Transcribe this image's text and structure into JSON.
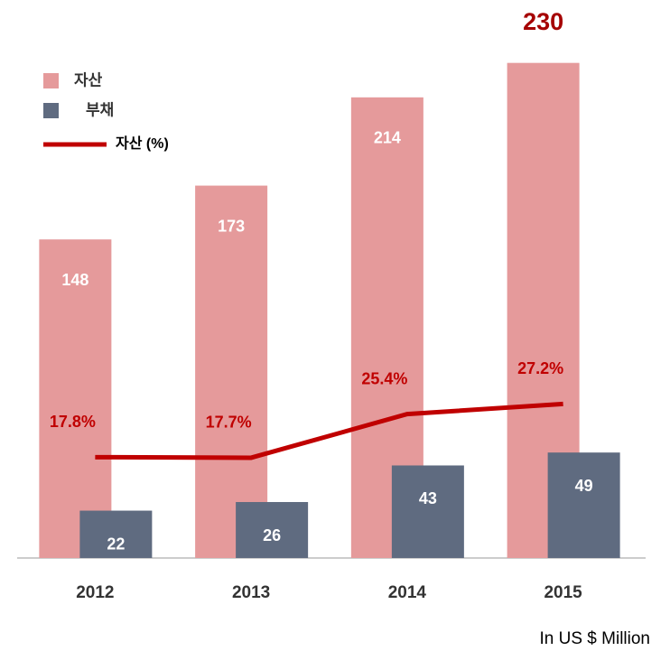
{
  "chart_data": {
    "type": "bar",
    "categories": [
      "2012",
      "2013",
      "2014",
      "2015"
    ],
    "series": [
      {
        "name": "자산",
        "color": "#e59a9b",
        "values": [
          148,
          173,
          214,
          230
        ]
      },
      {
        "name": "부채",
        "color": "#5f6b80",
        "values": [
          22,
          26,
          43,
          49
        ]
      },
      {
        "name": "자산 (%)",
        "type": "line",
        "axis": "y2",
        "color": "#c00000",
        "values": [
          17.8,
          17.7,
          25.4,
          27.2
        ],
        "value_labels": [
          "17.8%",
          "17.7%",
          "25.4%",
          "27.2%"
        ]
      }
    ],
    "ylim": [
      0,
      250
    ],
    "y2lim": [
      0,
      95
    ],
    "note": "In US $ Million"
  }
}
